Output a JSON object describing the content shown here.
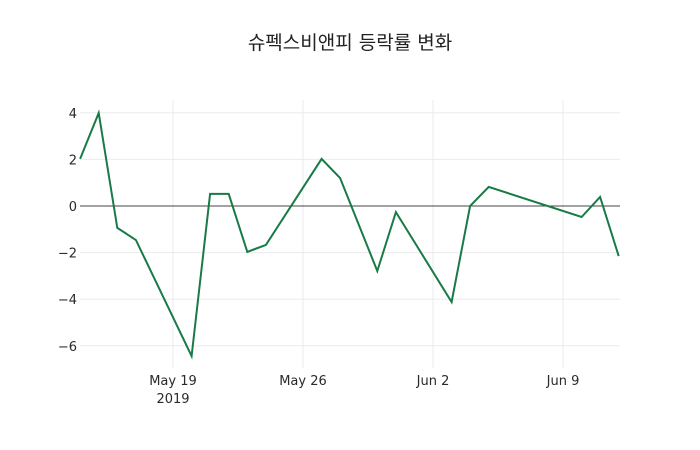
{
  "chart_data": {
    "type": "line",
    "title": "슈펙스비앤피 등락률 변화",
    "xlabel": "",
    "ylabel": "",
    "ylim": [
      -6.8,
      4.6
    ],
    "yticks": [
      4,
      2,
      0,
      -2,
      -4,
      -6
    ],
    "ytick_labels": [
      "4",
      "2",
      "0",
      "−2",
      "−4",
      "−6"
    ],
    "xticks": [
      {
        "date": "2019-05-19",
        "label": "May 19",
        "sublabel": "2019"
      },
      {
        "date": "2019-05-26",
        "label": "May 26",
        "sublabel": ""
      },
      {
        "date": "2019-06-02",
        "label": "Jun 2",
        "sublabel": ""
      },
      {
        "date": "2019-06-09",
        "label": "Jun 9",
        "sublabel": ""
      }
    ],
    "grid": true,
    "zero_line": true,
    "legend": "none",
    "series": [
      {
        "name": "등락률",
        "color": "#1a7a47",
        "x": [
          "2019-05-14",
          "2019-05-15",
          "2019-05-16",
          "2019-05-17",
          "2019-05-20",
          "2019-05-21",
          "2019-05-22",
          "2019-05-23",
          "2019-05-24",
          "2019-05-27",
          "2019-05-28",
          "2019-05-30",
          "2019-05-31",
          "2019-06-03",
          "2019-06-04",
          "2019-06-05",
          "2019-06-10",
          "2019-06-11",
          "2019-06-12"
        ],
        "values": [
          2.02,
          3.99,
          -0.94,
          -1.46,
          -6.44,
          0.52,
          0.52,
          -1.97,
          -1.67,
          2.02,
          1.2,
          -2.79,
          -0.26,
          -4.12,
          0.0,
          0.82,
          -0.47,
          0.39,
          -2.15
        ]
      }
    ]
  }
}
